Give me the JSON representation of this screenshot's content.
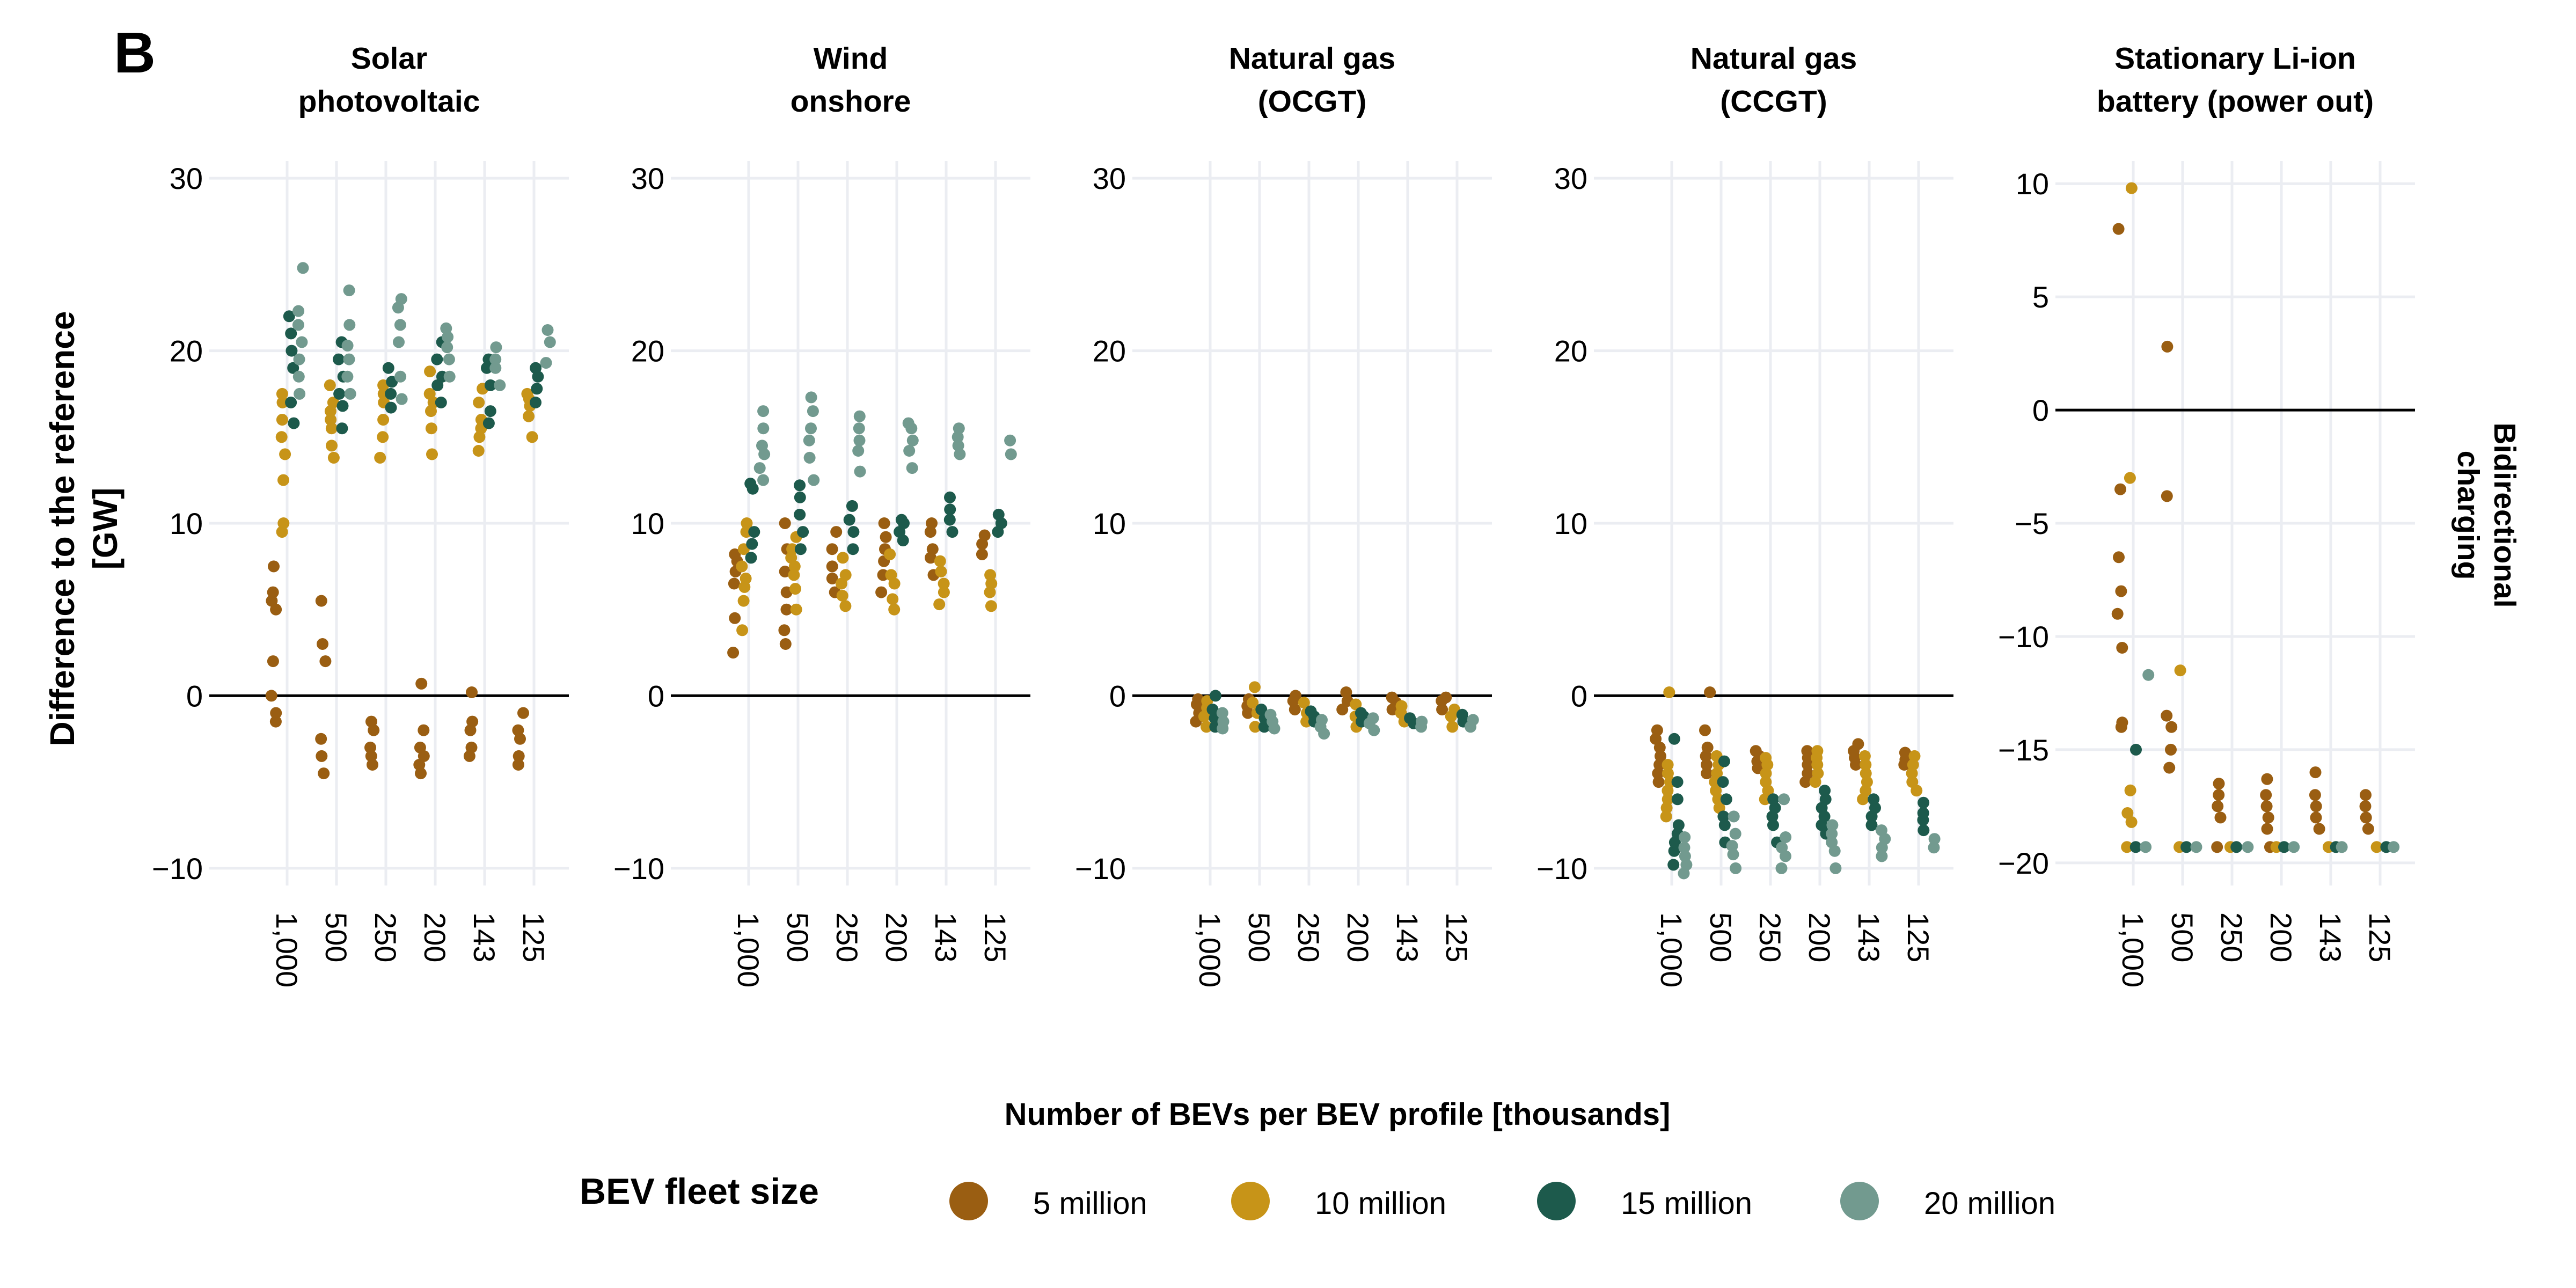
{
  "panel_label": "B",
  "y_axis_title": [
    "Difference to the reference",
    "[GW]"
  ],
  "strip_right": [
    "Bidirectional",
    "charging"
  ],
  "x_axis_title": "Number of BEVs per BEV profile [thousands]",
  "legend": {
    "title": "BEV fleet size",
    "items": [
      {
        "label": "5 million",
        "color": "#9a5e12"
      },
      {
        "label": "10 million",
        "color": "#c79418"
      },
      {
        "label": "15 million",
        "color": "#1d5a4c"
      },
      {
        "label": "20 million",
        "color": "#729a8f"
      }
    ]
  },
  "chart_data": {
    "type": "scatter",
    "x_categories": [
      "1,000",
      "500",
      "250",
      "200",
      "143",
      "125"
    ],
    "series_names": [
      "5 million",
      "10 million",
      "15 million",
      "20 million"
    ],
    "panels": [
      {
        "title": [
          "Solar",
          "photovoltaic"
        ],
        "ylim": [
          -11,
          31
        ],
        "yticks": [
          -10,
          0,
          10,
          20,
          30
        ],
        "values": [
          [
            [
              -1.5,
              -1,
              0,
              2,
              5,
              5.5,
              6,
              7.5
            ],
            [
              -4.5,
              -3.5,
              -2.5,
              2,
              3,
              5.5
            ],
            [
              -4,
              -3.5,
              -3,
              -2,
              -1.5
            ],
            [
              -4.5,
              -4,
              -3.5,
              -3,
              -2,
              0.7
            ],
            [
              -3.5,
              -3,
              -2,
              -1.5,
              0.2
            ],
            [
              -4,
              -3.5,
              -2.5,
              -2,
              -1
            ]
          ],
          [
            [
              9.5,
              10,
              12.5,
              14,
              15,
              16,
              17,
              17.5
            ],
            [
              13.8,
              14.5,
              15.5,
              16,
              16.5,
              17,
              18
            ],
            [
              13.8,
              15,
              16,
              17,
              17.5,
              18
            ],
            [
              14,
              15.5,
              16.5,
              17,
              17.5,
              18.8
            ],
            [
              14.2,
              15,
              15.5,
              16,
              17,
              17.8
            ],
            [
              15,
              16.2,
              16.8,
              17.2,
              17.5
            ]
          ],
          [
            [
              15.8,
              17,
              19,
              20,
              21,
              22
            ],
            [
              15.5,
              16.8,
              17.5,
              18.5,
              19.5,
              20.5
            ],
            [
              16.7,
              17.5,
              18.2,
              19
            ],
            [
              17,
              18,
              18.5,
              19.5,
              20.5
            ],
            [
              15.8,
              16.5,
              18,
              19,
              19.5
            ],
            [
              17,
              17.8,
              18.5,
              19
            ]
          ],
          [
            [
              17.5,
              18.5,
              19.5,
              20.5,
              21.5,
              22.3,
              24.8
            ],
            [
              17.5,
              18.5,
              19.5,
              20.3,
              21.5,
              23.5
            ],
            [
              17.2,
              18.5,
              20.5,
              21.5,
              22.5,
              23
            ],
            [
              18.5,
              19.5,
              20.2,
              20.8,
              21.3
            ],
            [
              18,
              19,
              19.5,
              20.2
            ],
            [
              19.3,
              20.5,
              21.2
            ]
          ]
        ]
      },
      {
        "title": [
          "Wind",
          "onshore"
        ],
        "ylim": [
          -11,
          31
        ],
        "yticks": [
          -10,
          0,
          10,
          20,
          30
        ],
        "values": [
          [
            [
              2.5,
              4.5,
              6.5,
              7.2,
              7.8,
              8.2
            ],
            [
              3,
              3.8,
              5,
              6,
              7.2,
              8.5,
              10
            ],
            [
              6,
              6.8,
              7.5,
              8.5,
              9.5
            ],
            [
              6,
              7,
              7.8,
              8.5,
              9.2,
              10
            ],
            [
              7,
              8,
              8.5,
              9.5,
              10
            ],
            [
              8.2,
              8.8,
              9.3
            ]
          ],
          [
            [
              3.8,
              5.5,
              6.3,
              6.8,
              7.5,
              8.5,
              9.5,
              10
            ],
            [
              5,
              6.2,
              7,
              7.5,
              8,
              8.5,
              9.2
            ],
            [
              5.2,
              5.8,
              6.5,
              7,
              8
            ],
            [
              5,
              5.6,
              6.5,
              7,
              8.2
            ],
            [
              5.3,
              6,
              6.5,
              7.2,
              7.8
            ],
            [
              5.2,
              6,
              6.5,
              7
            ]
          ],
          [
            [
              8,
              8.8,
              9.5,
              12,
              12.3
            ],
            [
              8.5,
              9.5,
              10.5,
              11.5,
              12.2
            ],
            [
              8.5,
              9.5,
              10.2,
              11
            ],
            [
              9,
              9.5,
              10,
              10.2
            ],
            [
              9.5,
              10.2,
              10.8,
              11.5
            ],
            [
              9.5,
              10,
              10.5
            ]
          ],
          [
            [
              12.5,
              13.2,
              14,
              14.5,
              15.5,
              16.5
            ],
            [
              12.5,
              13.8,
              14.8,
              15.5,
              16.5,
              17.3
            ],
            [
              13,
              14.2,
              14.8,
              15.5,
              16.2
            ],
            [
              13.2,
              14.2,
              14.8,
              15.5,
              15.8
            ],
            [
              14,
              14.5,
              15,
              15.5
            ],
            [
              14,
              14.8
            ]
          ]
        ]
      },
      {
        "title": [
          "Natural gas",
          "(OCGT)"
        ],
        "ylim": [
          -11,
          31
        ],
        "yticks": [
          -10,
          0,
          10,
          20,
          30
        ],
        "values": [
          [
            [
              -1.5,
              -1,
              -0.5,
              -0.2
            ],
            [
              -1,
              -0.6,
              -0.2
            ],
            [
              -0.8,
              -0.3,
              0
            ],
            [
              -0.8,
              -0.3,
              0.2
            ],
            [
              -0.8,
              -0.4,
              -0.1
            ],
            [
              -0.8,
              -0.3,
              -0.1
            ]
          ],
          [
            [
              -1.8,
              -1.2,
              -0.7,
              -0.3
            ],
            [
              -1.8,
              -1,
              -0.4,
              0.5
            ],
            [
              -1.5,
              -1,
              -0.4
            ],
            [
              -1.8,
              -1.2,
              -0.5
            ],
            [
              -1.5,
              -1,
              -0.6
            ],
            [
              -1.8,
              -1.2,
              -0.8
            ]
          ],
          [
            [
              -1.8,
              -1.3,
              -0.8,
              0
            ],
            [
              -1.8,
              -1.3,
              -0.8
            ],
            [
              -1.5,
              -1.2,
              -0.9
            ],
            [
              -1.5,
              -1.2,
              -1
            ],
            [
              -1.6,
              -1.3
            ],
            [
              -1.5,
              -1.1
            ]
          ],
          [
            [
              -1.9,
              -1.5,
              -1
            ],
            [
              -1.9,
              -1.5,
              -1.1
            ],
            [
              -2.2,
              -1.8,
              -1.4
            ],
            [
              -2,
              -1.6,
              -1.3
            ],
            [
              -1.8,
              -1.5
            ],
            [
              -1.8,
              -1.4
            ]
          ]
        ]
      },
      {
        "title": [
          "Natural gas",
          "(CCGT)"
        ],
        "ylim": [
          -11,
          31
        ],
        "yticks": [
          -10,
          0,
          10,
          20,
          30
        ],
        "values": [
          [
            [
              -5,
              -4.5,
              -4,
              -3.5,
              -3,
              -2.5,
              -2
            ],
            [
              -4.5,
              -4,
              -3.5,
              -3,
              -2,
              0.2
            ],
            [
              -4.2,
              -3.8,
              -3.5,
              -3.2
            ],
            [
              -5,
              -4.5,
              -4,
              -3.6,
              -3.2
            ],
            [
              -4,
              -3.6,
              -3.2,
              -2.8
            ],
            [
              -4,
              -3.7,
              -3.3
            ]
          ],
          [
            [
              -7,
              -6.5,
              -6,
              -5.5,
              -5,
              -4.5,
              -4,
              0.2
            ],
            [
              -6.5,
              -6,
              -5.5,
              -5,
              -4.5,
              -4,
              -3.5
            ],
            [
              -6,
              -5.5,
              -5,
              -4.5,
              -4,
              -3.6
            ],
            [
              -5,
              -4.5,
              -4,
              -3.6,
              -3.2
            ],
            [
              -6,
              -5.5,
              -5,
              -4.5,
              -4,
              -3.5
            ],
            [
              -5.5,
              -5,
              -4.5,
              -4,
              -3.5
            ]
          ],
          [
            [
              -9.8,
              -9,
              -8.5,
              -8,
              -7.5,
              -6,
              -5,
              -2.5
            ],
            [
              -8.5,
              -7.5,
              -7,
              -6,
              -5,
              -3.8
            ],
            [
              -8.5,
              -7.5,
              -7,
              -6.5,
              -6
            ],
            [
              -8,
              -7.5,
              -7,
              -6.5,
              -6,
              -5.5
            ],
            [
              -7.5,
              -7,
              -6.5,
              -6
            ],
            [
              -7.8,
              -7.2,
              -6.8,
              -6.2
            ]
          ],
          [
            [
              -10.3,
              -9.8,
              -9.3,
              -8.8,
              -8.2
            ],
            [
              -10,
              -9.2,
              -8.7,
              -8,
              -7
            ],
            [
              -10,
              -9.3,
              -8.8,
              -8.2,
              -6
            ],
            [
              -10,
              -9,
              -8.5,
              -8,
              -7.5
            ],
            [
              -9.3,
              -8.8,
              -8.3,
              -7.8
            ],
            [
              -8.8,
              -8.3
            ]
          ]
        ]
      },
      {
        "title": [
          "Stationary Li-ion",
          "battery (power out)"
        ],
        "ylim": [
          -21,
          11
        ],
        "yticks": [
          -20,
          -15,
          -10,
          -5,
          0,
          5,
          10
        ],
        "values": [
          [
            [
              -14,
              -13.8,
              -10.5,
              -9,
              -8,
              -6.5,
              -3.5,
              8
            ],
            [
              -15.8,
              -15,
              -14,
              -13.5,
              -3.8,
              2.8
            ],
            [
              -19.3,
              -18,
              -17.5,
              -17,
              -16.5
            ],
            [
              -19.3,
              -18.5,
              -18,
              -17.5,
              -17,
              -16.3
            ],
            [
              -18.5,
              -18,
              -17.5,
              -17,
              -16
            ],
            [
              -18.5,
              -18,
              -17.5,
              -17
            ]
          ],
          [
            [
              -19.3,
              -18.2,
              -17.8,
              -16.8,
              -3,
              9.8
            ],
            [
              -19.3,
              -11.5
            ],
            [
              -19.3
            ],
            [
              -19.3
            ],
            [
              -19.3
            ],
            [
              -19.3
            ]
          ],
          [
            [
              -19.3,
              -15
            ],
            [
              -19.3
            ],
            [
              -19.3
            ],
            [
              -19.3
            ],
            [
              -19.3
            ],
            [
              -19.3
            ]
          ],
          [
            [
              -19.3,
              -11.7
            ],
            [
              -19.3
            ],
            [
              -19.3
            ],
            [
              -19.3
            ],
            [
              -19.3
            ],
            [
              -19.3
            ]
          ]
        ]
      }
    ]
  }
}
